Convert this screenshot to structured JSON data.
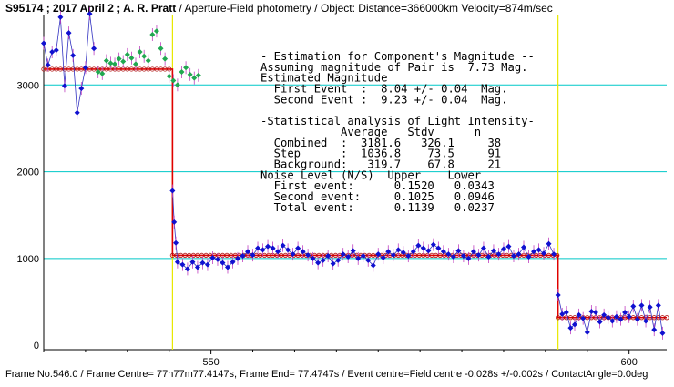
{
  "header": {
    "id": "S95174 ; 2017 April 2 ; A. R. Pratt",
    "rest": " / Aperture-Field photometry /  Object: Distance=366000km Velocity=874m/sec"
  },
  "footer": "Frame No.546.0 / Frame Centre= 77h77m77.4147s,  Frame End= 77.4747s / Event centre=Field centre -0.028s +/-0.002s / ContactAngle=0.0deg",
  "annotation": [
    "- Estimation for Component's Magnitude --",
    "Assuming magnitude of Pair is  7.73 Mag.",
    "Estimated Magnitude",
    "  First Event  :  8.04 +/- 0.04  Mag.",
    "  Second Event :  9.23 +/- 0.04  Mag.",
    "",
    "-Statistical analysis of Light Intensity-",
    "            Average   Stdv      n",
    "  Combined  :  3181.6   326.1     38",
    "  Step      :  1036.8    73.5     91",
    "  Background:   319.7    67.8     21",
    "Noise Level (N/S)  Upper    Lower",
    "  First event:      0.1520   0.0343",
    "  Second event:     0.1025   0.0946",
    "  Total event:      0.1139   0.0237"
  ],
  "colors": {
    "gridline": "#00c8c8",
    "event_marker": "#e8e800",
    "model": "#e00000",
    "model_symbols": "#b01010",
    "data_line": "#3030c0",
    "point_blue": "#1010d0",
    "point_green": "#20a850",
    "error_bar": "#c040c0"
  },
  "chart_data": {
    "type": "line",
    "x_ticks": [
      550,
      600
    ],
    "y_ticks": [
      0,
      1000,
      2000,
      3000
    ],
    "xlim": [
      530,
      604.5
    ],
    "ylim": [
      -50,
      3800
    ],
    "grid": true,
    "events": [
      {
        "x": 545.4,
        "label": ""
      },
      {
        "x": 591.5,
        "label": ""
      }
    ],
    "model": {
      "levels": [
        3181.6,
        1036.8,
        319.7
      ],
      "segments": [
        [
          530,
          545.4,
          3181.6
        ],
        [
          545.4,
          591.5,
          1036.8
        ],
        [
          591.5,
          604.5,
          319.7
        ]
      ]
    },
    "series": [
      {
        "color": "blue",
        "x": [
          530.0,
          530.5,
          531.0,
          531.5,
          532.0,
          532.5,
          533.0,
          533.5,
          534.0,
          534.5,
          535.0,
          535.5,
          536.0
        ],
        "y": [
          3480,
          3230,
          3380,
          3400,
          3780,
          2990,
          3600,
          3340,
          2680,
          2960,
          3200,
          3820,
          3420
        ]
      },
      {
        "color": "green",
        "x": [
          536.5,
          537.0,
          537.5,
          538.0,
          538.5,
          539.0,
          539.5,
          540.0,
          540.5,
          541.0,
          541.5,
          542.0,
          542.5,
          543.0,
          543.5,
          544.0,
          544.5
        ],
        "y": [
          3150,
          3130,
          3280,
          3250,
          3240,
          3300,
          3270,
          3350,
          3310,
          3240,
          3380,
          3330,
          3280,
          3580,
          3620,
          3420,
          3300
        ]
      },
      {
        "color": "green",
        "x": [
          545.0,
          545.5,
          546.0,
          546.5,
          547.0,
          547.5,
          548.0,
          548.5
        ],
        "y": [
          3100,
          3050,
          3000,
          3150,
          3200,
          3120,
          3080,
          3110
        ]
      },
      {
        "color": "blue",
        "x": [
          545.4,
          545.6,
          545.8,
          546.0,
          546.6,
          547.2,
          547.8,
          548.4,
          549.0,
          549.6,
          550.2,
          550.8,
          551.4,
          552.0,
          552.6,
          553.2,
          553.8,
          554.4,
          555.0,
          555.6,
          556.2,
          556.8,
          557.4,
          558.0,
          558.6,
          559.2,
          559.8,
          560.4,
          561.0,
          561.6,
          562.2,
          562.8,
          563.4,
          564.0,
          564.6,
          565.2,
          565.8,
          566.4,
          567.0,
          567.6,
          568.2,
          568.8,
          569.4,
          570.0,
          570.6,
          571.2,
          571.8,
          572.4,
          573.0,
          573.6,
          574.2,
          574.8,
          575.4,
          576.0,
          576.6,
          577.2,
          577.8,
          578.4,
          579.0,
          579.6,
          580.2,
          580.8,
          581.4,
          582.0,
          582.6,
          583.2,
          583.8,
          584.4,
          585.0,
          585.6,
          586.2,
          586.8,
          587.4,
          588.0,
          588.6,
          589.2,
          589.8,
          590.4,
          591.0
        ],
        "y": [
          1780,
          1420,
          1180,
          960,
          930,
          880,
          960,
          900,
          950,
          930,
          1010,
          990,
          950,
          900,
          960,
          1000,
          1030,
          1080,
          1040,
          1120,
          1100,
          1140,
          1120,
          1080,
          1150,
          1100,
          1050,
          1120,
          1080,
          1040,
          1000,
          950,
          980,
          1030,
          940,
          980,
          1050,
          1020,
          1090,
          1000,
          1030,
          980,
          920,
          1050,
          1010,
          1080,
          1040,
          1100,
          1070,
          1030,
          1080,
          1150,
          1120,
          1090,
          1160,
          1120,
          1080,
          1050,
          1020,
          1090,
          1030,
          1000,
          1080,
          1040,
          1120,
          1020,
          1090,
          1050,
          1110,
          1140,
          1030,
          1050,
          1130,
          1020,
          1080,
          1100,
          1060,
          1170,
          1050
        ]
      },
      {
        "color": "blue",
        "x": [
          591.5,
          592.0,
          592.5,
          593.0,
          593.5,
          594.0,
          594.5,
          595.0,
          595.5,
          596.0,
          596.5,
          597.0,
          597.5,
          598.0,
          598.5,
          599.0,
          599.5,
          600.0,
          600.5,
          601.0,
          601.5,
          602.0,
          602.5,
          603.0,
          603.5,
          604.0
        ],
        "y": [
          580,
          360,
          380,
          200,
          240,
          350,
          310,
          150,
          390,
          380,
          270,
          350,
          320,
          280,
          330,
          300,
          380,
          330,
          450,
          300,
          460,
          280,
          440,
          180,
          460,
          140
        ]
      }
    ]
  }
}
